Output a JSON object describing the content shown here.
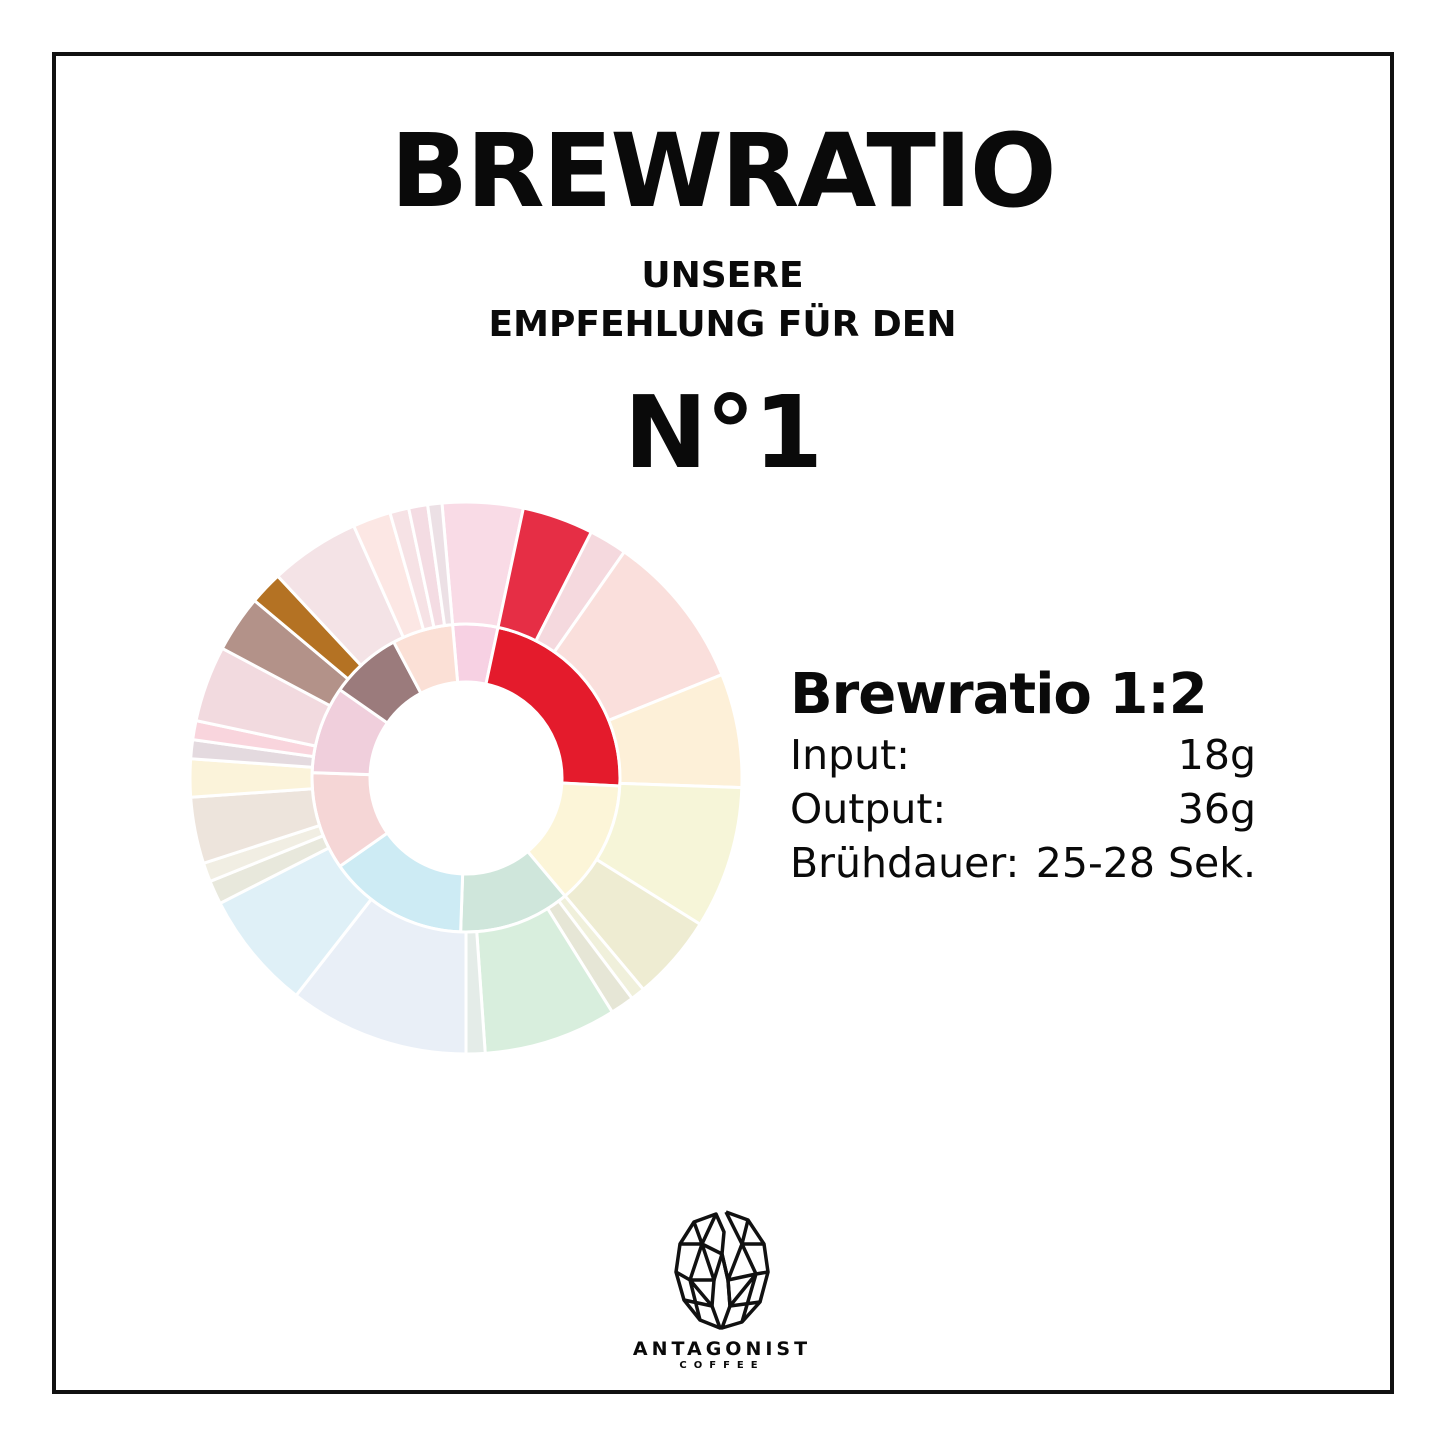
{
  "header": {
    "title": "BREWRATIO",
    "subtitle_line1": "UNSERE",
    "subtitle_line2": "EMPFEHLUNG FÜR DEN",
    "product": "N°1"
  },
  "recipe": {
    "heading": "Brewratio 1:2",
    "rows": [
      {
        "label": "Input:",
        "value": "18g"
      },
      {
        "label": "Output:",
        "value": "36g"
      },
      {
        "label": "Brühdauer:",
        "value": "25-28 Sek."
      }
    ]
  },
  "flavor_wheel": {
    "inner_colors": [
      "#f7d1e3",
      "#e41b2c",
      "#fcf5d8",
      "#cfe6db",
      "#cdebf4",
      "#f5d6d6",
      "#f0cfdc",
      "#9b7b7c",
      "#fbe0d6"
    ],
    "outer_colors": [
      "#f9dbe6",
      "#e62e45",
      "#f5d9de",
      "#fadfdc",
      "#fdf0d8",
      "#f6f5d8",
      "#eeecd2",
      "#f0f0db",
      "#e6e6d6",
      "#d8eedd",
      "#e4ece8",
      "#e9eff7",
      "#dff0f7",
      "#e8e8dc",
      "#f1eee3",
      "#ede4dc",
      "#fbf3da",
      "#e4dadf",
      "#f9d5dd",
      "#f2dadf",
      "#b39289",
      "#b47223",
      "#f4e3e6",
      "#fce7e4",
      "#f6e2e5",
      "#f4dce3",
      "#ece0e5"
    ]
  },
  "logo": {
    "brand": "ANTAGONIST",
    "tagline": "COFFEE"
  }
}
